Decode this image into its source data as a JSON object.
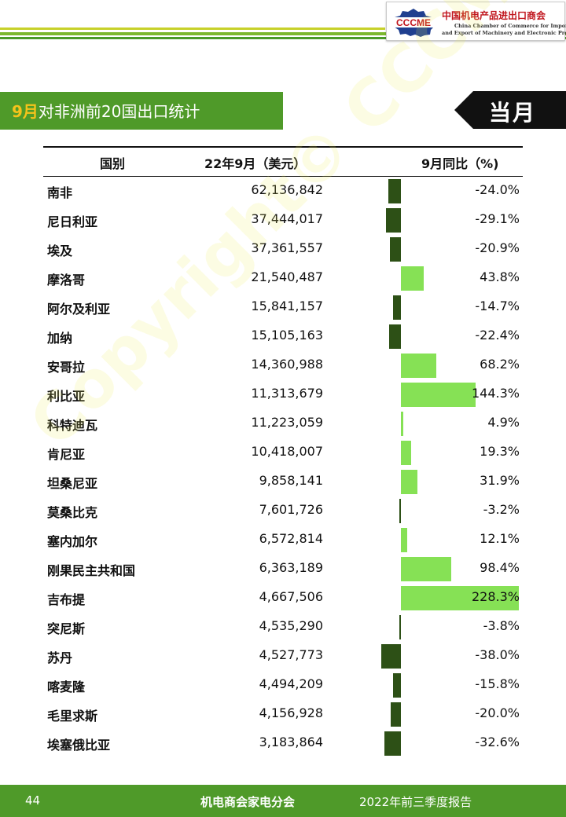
{
  "header": {
    "logo_abbr": "CCCME",
    "logo_cn": "中国机电产品进出口商会",
    "logo_en_line1": "China Chamber of Commerce for Import",
    "logo_en_line2": "and Export of Machinery and Electronic Products"
  },
  "title": {
    "highlight": "9月",
    "text": "对非洲前20国出口统计",
    "period_tab": "当月"
  },
  "colors": {
    "brand_green": "#4f9a29",
    "highlight_yellow": "#f5c31b",
    "negative_bar": "#2d5016",
    "positive_bar": "#86e155"
  },
  "table": {
    "headers": [
      "国别",
      "22年9月（美元）",
      "9月同比（%)"
    ],
    "rows": [
      {
        "country": "南非",
        "value": "62,136,842",
        "yoy": "-24.0%",
        "yoy_num": -24.0
      },
      {
        "country": "尼日利亚",
        "value": "37,444,017",
        "yoy": "-29.1%",
        "yoy_num": -29.1
      },
      {
        "country": "埃及",
        "value": "37,361,557",
        "yoy": "-20.9%",
        "yoy_num": -20.9
      },
      {
        "country": "摩洛哥",
        "value": "21,540,487",
        "yoy": "43.8%",
        "yoy_num": 43.8
      },
      {
        "country": "阿尔及利亚",
        "value": "15,841,157",
        "yoy": "-14.7%",
        "yoy_num": -14.7
      },
      {
        "country": "加纳",
        "value": "15,105,163",
        "yoy": "-22.4%",
        "yoy_num": -22.4
      },
      {
        "country": "安哥拉",
        "value": "14,360,988",
        "yoy": "68.2%",
        "yoy_num": 68.2
      },
      {
        "country": "利比亚",
        "value": "11,313,679",
        "yoy": "144.3%",
        "yoy_num": 144.3
      },
      {
        "country": "科特迪瓦",
        "value": "11,223,059",
        "yoy": "4.9%",
        "yoy_num": 4.9
      },
      {
        "country": "肯尼亚",
        "value": "10,418,007",
        "yoy": "19.3%",
        "yoy_num": 19.3
      },
      {
        "country": "坦桑尼亚",
        "value": "9,858,141",
        "yoy": "31.9%",
        "yoy_num": 31.9
      },
      {
        "country": "莫桑比克",
        "value": "7,601,726",
        "yoy": "-3.2%",
        "yoy_num": -3.2
      },
      {
        "country": "塞内加尔",
        "value": "6,572,814",
        "yoy": "12.1%",
        "yoy_num": 12.1
      },
      {
        "country": "刚果民主共和国",
        "value": "6,363,189",
        "yoy": "98.4%",
        "yoy_num": 98.4
      },
      {
        "country": "吉布提",
        "value": "4,667,506",
        "yoy": "228.3%",
        "yoy_num": 228.3
      },
      {
        "country": "突尼斯",
        "value": "4,535,290",
        "yoy": "-3.8%",
        "yoy_num": -3.8
      },
      {
        "country": "苏丹",
        "value": "4,527,773",
        "yoy": "-38.0%",
        "yoy_num": -38.0
      },
      {
        "country": "喀麦隆",
        "value": "4,494,209",
        "yoy": "-15.8%",
        "yoy_num": -15.8
      },
      {
        "country": "毛里求斯",
        "value": "4,156,928",
        "yoy": "-20.0%",
        "yoy_num": -20.0
      },
      {
        "country": "埃塞俄比亚",
        "value": "3,183,864",
        "yoy": "-32.6%",
        "yoy_num": -32.6
      }
    ]
  },
  "watermark": "Copyright© CCCME",
  "footer": {
    "page_number": "44",
    "org": "机电商会家电分会",
    "report": "2022年前三季度报告"
  }
}
